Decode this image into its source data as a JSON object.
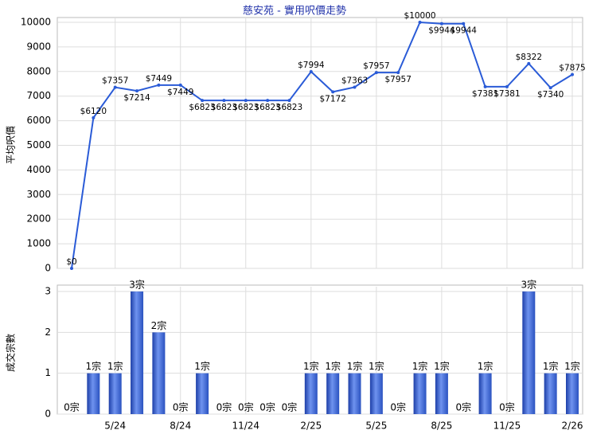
{
  "chart_data": [
    {
      "type": "line",
      "title": "慈安苑 - 實用呎價走勢",
      "y_label": "平均呎價",
      "categories": [
        null,
        null,
        "5/24",
        null,
        null,
        "8/24",
        null,
        null,
        "11/24",
        null,
        null,
        "2/25",
        null,
        null,
        "5/25",
        null,
        null,
        "8/25",
        null,
        null,
        "11/25",
        null,
        null,
        "2/26"
      ],
      "values": [
        0,
        6120,
        7357,
        7214,
        7449,
        7449,
        6823,
        6823,
        6823,
        6823,
        6823,
        7994,
        7172,
        7363,
        7957,
        7957,
        10000,
        9944,
        9944,
        7381,
        7381,
        8322,
        7340,
        7875
      ],
      "value_labels": [
        "$0",
        "$6120",
        "$7357",
        "$7214",
        "$7449",
        "$7449",
        "$6823",
        "$6823",
        "$6823",
        "$6823",
        "$6823",
        "$7994",
        "$7172",
        "$7363",
        "$7957",
        "$7957",
        "$10000",
        "$9944",
        "$9944",
        "$7381",
        "$7381",
        "$8322",
        "$7340",
        "$7875"
      ],
      "color": "#2a5bd7",
      "ylim": [
        0,
        10000
      ],
      "yticks": [
        0,
        1000,
        2000,
        3000,
        4000,
        5000,
        6000,
        7000,
        8000,
        9000,
        10000
      ],
      "grid": true
    },
    {
      "type": "bar",
      "y_label": "成交宗數",
      "categories": [
        null,
        null,
        "5/24",
        null,
        null,
        "8/24",
        null,
        null,
        "11/24",
        null,
        null,
        "2/25",
        null,
        null,
        "5/25",
        null,
        null,
        "8/25",
        null,
        null,
        "11/25",
        null,
        null,
        "2/26"
      ],
      "values": [
        0,
        1,
        1,
        3,
        2,
        0,
        1,
        0,
        0,
        0,
        0,
        1,
        1,
        1,
        1,
        0,
        1,
        1,
        0,
        1,
        0,
        3,
        1,
        1
      ],
      "value_labels": [
        "0宗",
        "1宗",
        "1宗",
        "3宗",
        "2宗",
        "0宗",
        "1宗",
        "0宗",
        "0宗",
        "0宗",
        "0宗",
        "1宗",
        "1宗",
        "1宗",
        "1宗",
        "0宗",
        "1宗",
        "1宗",
        "0宗",
        "1宗",
        "0宗",
        "3宗",
        "1宗",
        "1宗"
      ],
      "color": "#2f5fd0",
      "ylim": [
        0,
        3
      ],
      "yticks": [
        0,
        1,
        2,
        3
      ],
      "grid": true
    }
  ]
}
